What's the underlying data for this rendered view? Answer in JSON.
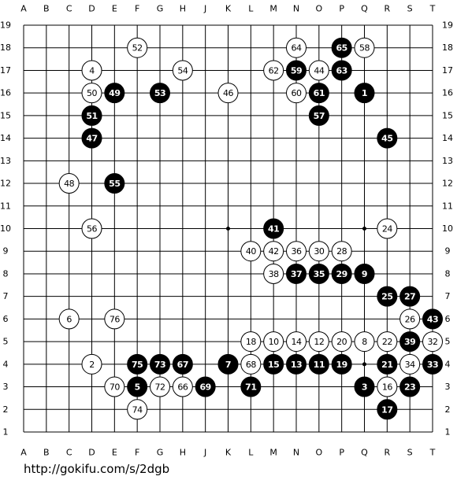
{
  "columns": [
    "A",
    "B",
    "C",
    "D",
    "E",
    "F",
    "G",
    "H",
    "J",
    "K",
    "L",
    "M",
    "N",
    "O",
    "P",
    "Q",
    "R",
    "S",
    "T"
  ],
  "rows": [
    19,
    18,
    17,
    16,
    15,
    14,
    13,
    12,
    11,
    10,
    9,
    8,
    7,
    6,
    5,
    4,
    3,
    2,
    1
  ],
  "stones": [
    {
      "n": 52,
      "color": "white",
      "col": "F",
      "row": 18
    },
    {
      "n": 64,
      "color": "white",
      "col": "N",
      "row": 18
    },
    {
      "n": 65,
      "color": "black",
      "col": "P",
      "row": 18
    },
    {
      "n": 58,
      "color": "white",
      "col": "Q",
      "row": 18
    },
    {
      "n": 4,
      "color": "white",
      "col": "D",
      "row": 17
    },
    {
      "n": 54,
      "color": "white",
      "col": "H",
      "row": 17
    },
    {
      "n": 62,
      "color": "white",
      "col": "M",
      "row": 17
    },
    {
      "n": 59,
      "color": "black",
      "col": "N",
      "row": 17
    },
    {
      "n": 44,
      "color": "white",
      "col": "O",
      "row": 17
    },
    {
      "n": 63,
      "color": "black",
      "col": "P",
      "row": 17
    },
    {
      "n": 50,
      "color": "white",
      "col": "D",
      "row": 16
    },
    {
      "n": 49,
      "color": "black",
      "col": "E",
      "row": 16
    },
    {
      "n": 53,
      "color": "black",
      "col": "G",
      "row": 16
    },
    {
      "n": 46,
      "color": "white",
      "col": "K",
      "row": 16
    },
    {
      "n": 60,
      "color": "white",
      "col": "N",
      "row": 16
    },
    {
      "n": 61,
      "color": "black",
      "col": "O",
      "row": 16
    },
    {
      "n": 1,
      "color": "black",
      "col": "Q",
      "row": 16
    },
    {
      "n": 51,
      "color": "black",
      "col": "D",
      "row": 15
    },
    {
      "n": 57,
      "color": "black",
      "col": "O",
      "row": 15
    },
    {
      "n": 47,
      "color": "black",
      "col": "D",
      "row": 14
    },
    {
      "n": 45,
      "color": "black",
      "col": "R",
      "row": 14
    },
    {
      "n": 48,
      "color": "white",
      "col": "C",
      "row": 12
    },
    {
      "n": 55,
      "color": "black",
      "col": "E",
      "row": 12
    },
    {
      "n": 56,
      "color": "white",
      "col": "D",
      "row": 10
    },
    {
      "n": 41,
      "color": "black",
      "col": "M",
      "row": 10
    },
    {
      "n": 24,
      "color": "white",
      "col": "R",
      "row": 10
    },
    {
      "n": 40,
      "color": "white",
      "col": "L",
      "row": 9
    },
    {
      "n": 42,
      "color": "white",
      "col": "M",
      "row": 9
    },
    {
      "n": 36,
      "color": "white",
      "col": "N",
      "row": 9
    },
    {
      "n": 30,
      "color": "white",
      "col": "O",
      "row": 9
    },
    {
      "n": 28,
      "color": "white",
      "col": "P",
      "row": 9
    },
    {
      "n": 38,
      "color": "white",
      "col": "M",
      "row": 8
    },
    {
      "n": 37,
      "color": "black",
      "col": "N",
      "row": 8
    },
    {
      "n": 35,
      "color": "black",
      "col": "O",
      "row": 8
    },
    {
      "n": 29,
      "color": "black",
      "col": "P",
      "row": 8
    },
    {
      "n": 9,
      "color": "black",
      "col": "Q",
      "row": 8
    },
    {
      "n": 25,
      "color": "black",
      "col": "R",
      "row": 7
    },
    {
      "n": 27,
      "color": "black",
      "col": "S",
      "row": 7
    },
    {
      "n": 6,
      "color": "white",
      "col": "C",
      "row": 6
    },
    {
      "n": 76,
      "color": "white",
      "col": "E",
      "row": 6
    },
    {
      "n": 26,
      "color": "white",
      "col": "S",
      "row": 6
    },
    {
      "n": 43,
      "color": "black",
      "col": "T",
      "row": 6
    },
    {
      "n": 18,
      "color": "white",
      "col": "L",
      "row": 5
    },
    {
      "n": 10,
      "color": "white",
      "col": "M",
      "row": 5
    },
    {
      "n": 14,
      "color": "white",
      "col": "N",
      "row": 5
    },
    {
      "n": 12,
      "color": "white",
      "col": "O",
      "row": 5
    },
    {
      "n": 20,
      "color": "white",
      "col": "P",
      "row": 5
    },
    {
      "n": 8,
      "color": "white",
      "col": "Q",
      "row": 5
    },
    {
      "n": 22,
      "color": "white",
      "col": "R",
      "row": 5
    },
    {
      "n": 39,
      "color": "black",
      "col": "S",
      "row": 5
    },
    {
      "n": 32,
      "color": "white",
      "col": "T",
      "row": 5
    },
    {
      "n": 2,
      "color": "white",
      "col": "D",
      "row": 4
    },
    {
      "n": 75,
      "color": "black",
      "col": "F",
      "row": 4
    },
    {
      "n": 73,
      "color": "black",
      "col": "G",
      "row": 4
    },
    {
      "n": 67,
      "color": "black",
      "col": "H",
      "row": 4
    },
    {
      "n": 7,
      "color": "black",
      "col": "K",
      "row": 4
    },
    {
      "n": 68,
      "color": "white",
      "col": "L",
      "row": 4
    },
    {
      "n": 15,
      "color": "black",
      "col": "M",
      "row": 4
    },
    {
      "n": 13,
      "color": "black",
      "col": "N",
      "row": 4
    },
    {
      "n": 11,
      "color": "black",
      "col": "O",
      "row": 4
    },
    {
      "n": 19,
      "color": "black",
      "col": "P",
      "row": 4
    },
    {
      "n": 21,
      "color": "black",
      "col": "R",
      "row": 4
    },
    {
      "n": 34,
      "color": "white",
      "col": "S",
      "row": 4
    },
    {
      "n": 33,
      "color": "black",
      "col": "T",
      "row": 4
    },
    {
      "n": 70,
      "color": "white",
      "col": "E",
      "row": 3
    },
    {
      "n": 5,
      "color": "black",
      "col": "F",
      "row": 3
    },
    {
      "n": 72,
      "color": "white",
      "col": "G",
      "row": 3
    },
    {
      "n": 66,
      "color": "white",
      "col": "H",
      "row": 3
    },
    {
      "n": 69,
      "color": "black",
      "col": "J",
      "row": 3
    },
    {
      "n": 71,
      "color": "black",
      "col": "L",
      "row": 3
    },
    {
      "n": 3,
      "color": "black",
      "col": "Q",
      "row": 3
    },
    {
      "n": 16,
      "color": "white",
      "col": "R",
      "row": 3
    },
    {
      "n": 23,
      "color": "black",
      "col": "S",
      "row": 3
    },
    {
      "n": 74,
      "color": "white",
      "col": "F",
      "row": 2
    },
    {
      "n": 17,
      "color": "black",
      "col": "R",
      "row": 2
    }
  ],
  "url": "http://gokifu.com/s/2dgb"
}
